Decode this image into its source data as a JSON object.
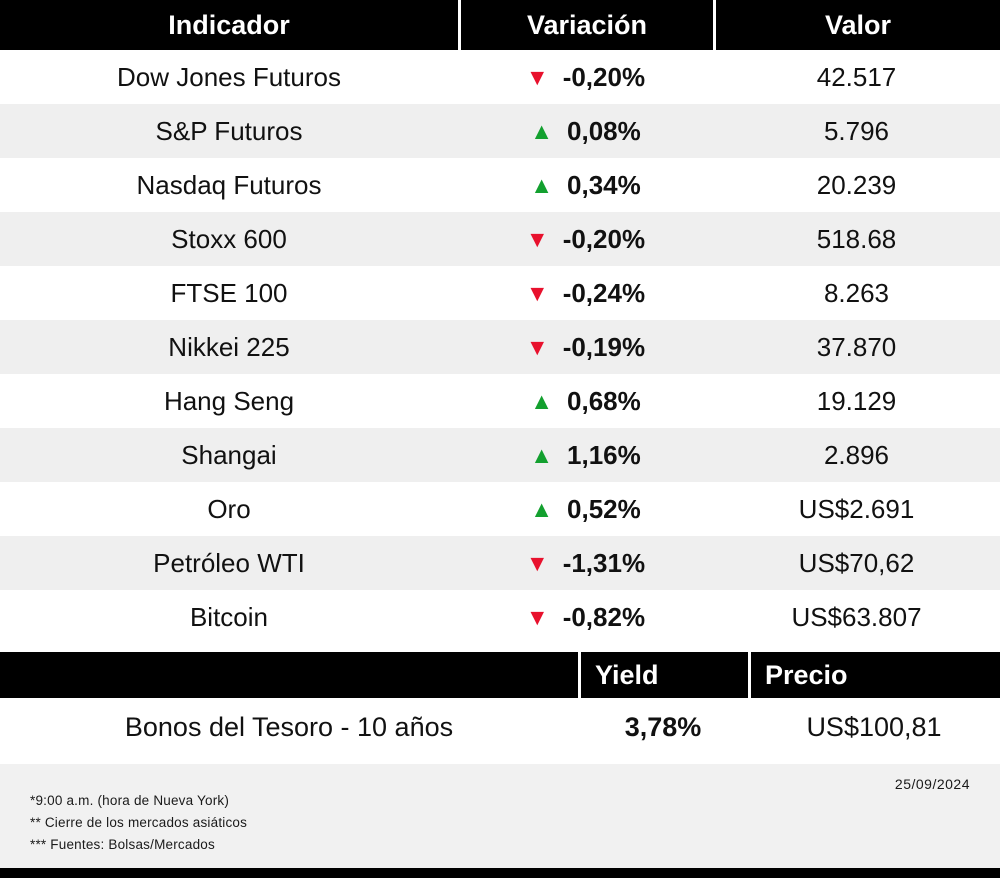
{
  "colors": {
    "up": "#13a02f",
    "down": "#e8112d",
    "header_bg": "#000000",
    "row_alt": "#efefef",
    "footer_bg": "#f1f1f1"
  },
  "table": {
    "headers": [
      "Indicador",
      "Variación",
      "Valor"
    ],
    "rows": [
      {
        "indicator": "Dow Jones Futuros",
        "direction": "down",
        "variation": "-0,20%",
        "value": "42.517"
      },
      {
        "indicator": "S&P Futuros",
        "direction": "up",
        "variation": "0,08%",
        "value": "5.796"
      },
      {
        "indicator": "Nasdaq Futuros",
        "direction": "up",
        "variation": "0,34%",
        "value": "20.239"
      },
      {
        "indicator": "Stoxx 600",
        "direction": "down",
        "variation": "-0,20%",
        "value": "518.68"
      },
      {
        "indicator": "FTSE 100",
        "direction": "down",
        "variation": "-0,24%",
        "value": "8.263"
      },
      {
        "indicator": "Nikkei 225",
        "direction": "down",
        "variation": "-0,19%",
        "value": "37.870"
      },
      {
        "indicator": "Hang Seng",
        "direction": "up",
        "variation": "0,68%",
        "value": "19.129"
      },
      {
        "indicator": "Shangai",
        "direction": "up",
        "variation": "1,16%",
        "value": "2.896"
      },
      {
        "indicator": "Oro",
        "direction": "up",
        "variation": "0,52%",
        "value": "US$2.691"
      },
      {
        "indicator": "Petróleo WTI",
        "direction": "down",
        "variation": "-1,31%",
        "value": "US$70,62"
      },
      {
        "indicator": "Bitcoin",
        "direction": "down",
        "variation": "-0,82%",
        "value": "US$63.807"
      }
    ]
  },
  "bonds": {
    "headers": {
      "yield": "Yield",
      "price": "Precio"
    },
    "row": {
      "indicator": "Bonos del Tesoro - 10 años",
      "yield": "3,78%",
      "price": "US$100,81"
    }
  },
  "footer": {
    "notes": [
      "*9:00 a.m. (hora de Nueva York)",
      "** Cierre de los mercados asiáticos",
      "*** Fuentes: Bolsas/Mercados"
    ],
    "date": "25/09/2024"
  },
  "chart_data": {
    "type": "table",
    "title": "Indicadores de mercado",
    "columns": [
      "Indicador",
      "Variación",
      "Valor"
    ],
    "rows": [
      [
        "Dow Jones Futuros",
        "-0,20%",
        "42.517"
      ],
      [
        "S&P Futuros",
        "0,08%",
        "5.796"
      ],
      [
        "Nasdaq Futuros",
        "0,34%",
        "20.239"
      ],
      [
        "Stoxx 600",
        "-0,20%",
        "518.68"
      ],
      [
        "FTSE 100",
        "-0,24%",
        "8.263"
      ],
      [
        "Nikkei 225",
        "-0,19%",
        "37.870"
      ],
      [
        "Hang Seng",
        "0,68%",
        "19.129"
      ],
      [
        "Shangai",
        "1,16%",
        "2.896"
      ],
      [
        "Oro",
        "0,52%",
        "US$2.691"
      ],
      [
        "Petróleo WTI",
        "-1,31%",
        "US$70,62"
      ],
      [
        "Bitcoin",
        "-0,82%",
        "US$63.807"
      ]
    ],
    "secondary_table": {
      "columns": [
        "",
        "Yield",
        "Precio"
      ],
      "rows": [
        [
          "Bonos del Tesoro - 10 años",
          "3,78%",
          "US$100,81"
        ]
      ]
    },
    "annotations": [
      "*9:00 a.m. (hora de Nueva York)",
      "** Cierre de los mercados asiáticos",
      "*** Fuentes: Bolsas/Mercados",
      "25/09/2024"
    ]
  }
}
